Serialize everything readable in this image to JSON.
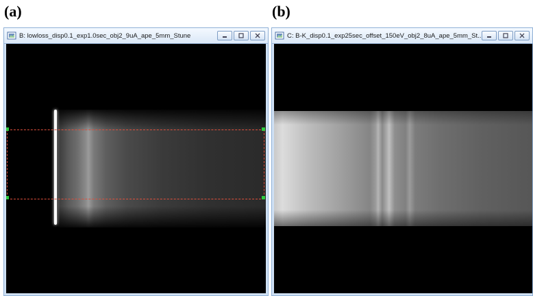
{
  "labels": {
    "a": "(a)",
    "b": "(b)"
  },
  "window_a": {
    "title": "B: lowloss_disp0.1_exp1.0sec_obj2_9uA_ape_5mm_Stune",
    "controls": [
      "minimize-icon",
      "maximize-icon",
      "close-icon"
    ]
  },
  "window_b": {
    "title": "C: B-K_disp0.1_exp25sec_offset_150eV_obj2_8uA_ape_5mm_St...",
    "controls": [
      "minimize-icon",
      "maximize-icon",
      "close-icon"
    ]
  },
  "colors": {
    "titlebar_top": "#f4f9ff",
    "titlebar_bottom": "#dbe8f7",
    "frame": "#cfe0f3",
    "roi_line": "#e0503c",
    "roi_handle": "#2ecc40"
  }
}
